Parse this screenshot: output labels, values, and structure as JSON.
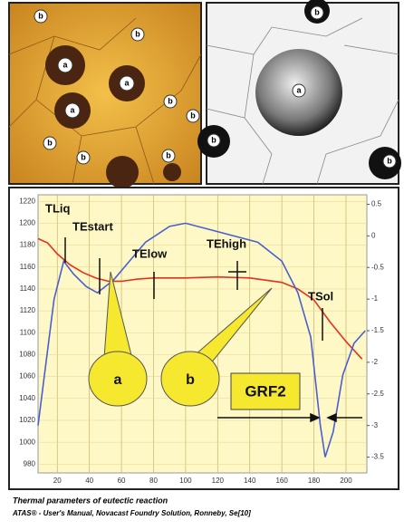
{
  "micrographs": {
    "left_labels": [
      "b",
      "b",
      "a",
      "a",
      "a",
      "b",
      "b",
      "b",
      "b",
      "b"
    ],
    "right_labels": [
      "b",
      "a",
      "b",
      "b"
    ]
  },
  "chart_data": {
    "type": "line",
    "xlim": [
      8,
      213
    ],
    "xticks": [
      20,
      40,
      60,
      80,
      100,
      120,
      140,
      160,
      180,
      200
    ],
    "ylim": [
      972,
      1226
    ],
    "yticks": [
      980,
      1000,
      1020,
      1040,
      1060,
      1080,
      1100,
      1120,
      1140,
      1160,
      1180,
      1200,
      1220
    ],
    "y2lim": [
      -3.75,
      0.65
    ],
    "y2ticks": [
      0.5,
      0,
      -0.5,
      -1,
      -1.5,
      -2,
      -2.5,
      -3,
      -3.5
    ],
    "grid": true,
    "series": [
      {
        "color": "#e2321e",
        "x": [
          8,
          14,
          20,
          28,
          36,
          44,
          52,
          60,
          70,
          80,
          100,
          120,
          140,
          160,
          170,
          180,
          190,
          200,
          210
        ],
        "values": [
          1186,
          1182,
          1172,
          1162,
          1155,
          1150,
          1147,
          1147,
          1149,
          1150,
          1150,
          1151,
          1150,
          1146,
          1140,
          1130,
          1110,
          1092,
          1076
        ]
      },
      {
        "color": "#4a5fd0",
        "axis": "y2",
        "x": [
          8,
          12,
          18,
          24,
          30,
          38,
          45,
          55,
          65,
          75,
          90,
          100,
          115,
          130,
          145,
          160,
          170,
          178,
          184,
          187,
          192,
          198,
          205,
          212
        ],
        "values": [
          -3.0,
          -2.2,
          -1.0,
          -0.4,
          -0.6,
          -0.8,
          -0.9,
          -0.7,
          -0.4,
          -0.1,
          0.15,
          0.2,
          0.1,
          0,
          -0.1,
          -0.4,
          -0.9,
          -1.6,
          -3.0,
          -3.5,
          -3.1,
          -2.2,
          -1.7,
          -1.5
        ]
      }
    ],
    "annotations": [
      "TLiq",
      "TEstart",
      "TElow",
      "TEhigh",
      "TSol",
      "a",
      "b",
      "GRF2"
    ]
  },
  "caption": {
    "title": "Thermal parameters of eutectic reaction",
    "source": "ATAS® - User's Manual, Novacast Foundry Solution, Ronneby, Se[10]"
  }
}
